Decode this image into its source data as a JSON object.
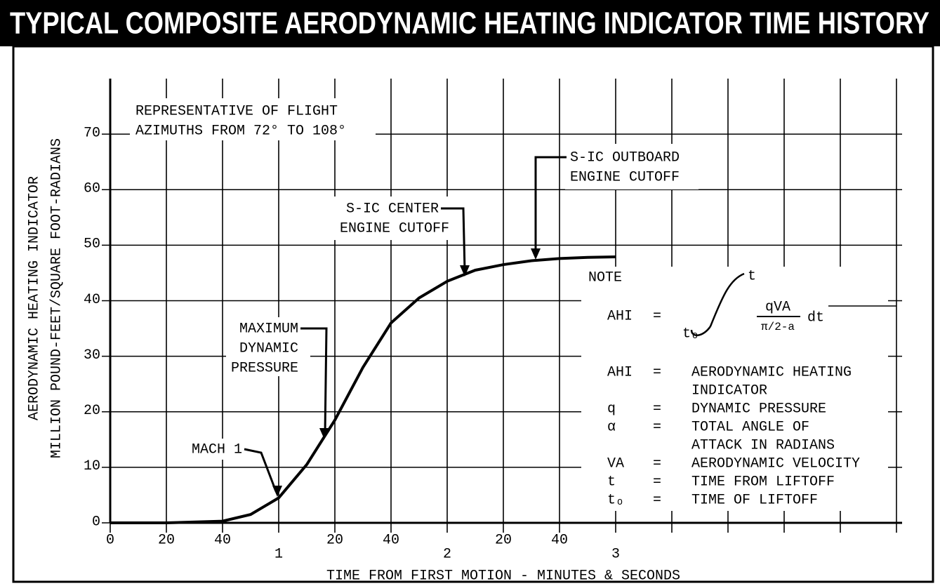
{
  "chart_data": {
    "type": "line",
    "title": "TYPICAL COMPOSITE AERODYNAMIC HEATING INDICATOR TIME HISTORY",
    "y_label": [
      "AERODYNAMIC HEATING INDICATOR",
      "MILLION POUND-FEET/SQUARE FOOT-RADIANS"
    ],
    "x_label": "TIME FROM FIRST MOTION - MINUTES & SECONDS",
    "x": [
      0,
      20,
      40,
      50,
      60,
      70,
      80,
      90,
      100,
      110,
      120,
      130,
      140,
      150,
      160,
      170,
      180
    ],
    "values": [
      0,
      0,
      0.3,
      1.5,
      4.5,
      10.5,
      18.5,
      28,
      36,
      40.5,
      43.5,
      45.5,
      46.5,
      47.2,
      47.6,
      47.8,
      47.9
    ],
    "color": "#000000",
    "xlim": [
      0,
      280
    ],
    "xticks": [
      0,
      20,
      40,
      {
        "value": 60,
        "label": "1"
      },
      {
        "value": 80,
        "label": "20"
      },
      {
        "value": 100,
        "label": "40"
      },
      {
        "value": 120,
        "label": "2"
      },
      {
        "value": 140,
        "label": "20"
      },
      {
        "value": 160,
        "label": "40"
      },
      {
        "value": 180,
        "label": "3"
      },
      {
        "value": 200,
        "label": null
      },
      {
        "value": 220,
        "label": null
      },
      {
        "value": 240,
        "label": null
      },
      {
        "value": 260,
        "label": null
      },
      {
        "value": 280,
        "label": null
      }
    ],
    "ylim": [
      0,
      80
    ],
    "yticks": [
      0,
      10,
      20,
      30,
      40,
      50,
      60,
      70
    ],
    "grid": true,
    "annotations": [
      {
        "lines": [
          "REPRESENTATIVE OF FLIGHT",
          "AZIMUTHS FROM 72° TO 108°"
        ]
      },
      {
        "lines": [
          "S-IC OUTBOARD",
          "ENGINE CUTOFF"
        ]
      },
      {
        "lines": [
          "S-IC CENTER",
          "ENGINE CUTOFF"
        ]
      },
      {
        "lines": [
          "MAXIMUM",
          "DYNAMIC",
          "PRESSURE"
        ]
      },
      {
        "lines": [
          "MACH 1"
        ]
      }
    ],
    "note": {
      "title": "NOTE",
      "formula": {
        "lhs": "AHI",
        "eq": "=",
        "upper": "t",
        "lower": "tₒ",
        "numerator": "qVA",
        "denominator": "π/2-a",
        "differential": "dt"
      },
      "definitions": [
        {
          "symbol": "AHI",
          "eq": "=",
          "lines": [
            "AERODYNAMIC HEATING",
            "INDICATOR"
          ]
        },
        {
          "symbol": "q",
          "eq": "=",
          "lines": [
            "DYNAMIC PRESSURE"
          ]
        },
        {
          "symbol": "α",
          "eq": "=",
          "lines": [
            "TOTAL ANGLE OF",
            "ATTACK IN RADIANS"
          ]
        },
        {
          "symbol": "VA",
          "eq": "=",
          "lines": [
            "AERODYNAMIC VELOCITY"
          ]
        },
        {
          "symbol": "t",
          "eq": "=",
          "lines": [
            "TIME FROM LIFTOFF"
          ]
        },
        {
          "symbol": "tₒ",
          "eq": "=",
          "lines": [
            "TIME OF LIFTOFF"
          ]
        }
      ]
    }
  }
}
